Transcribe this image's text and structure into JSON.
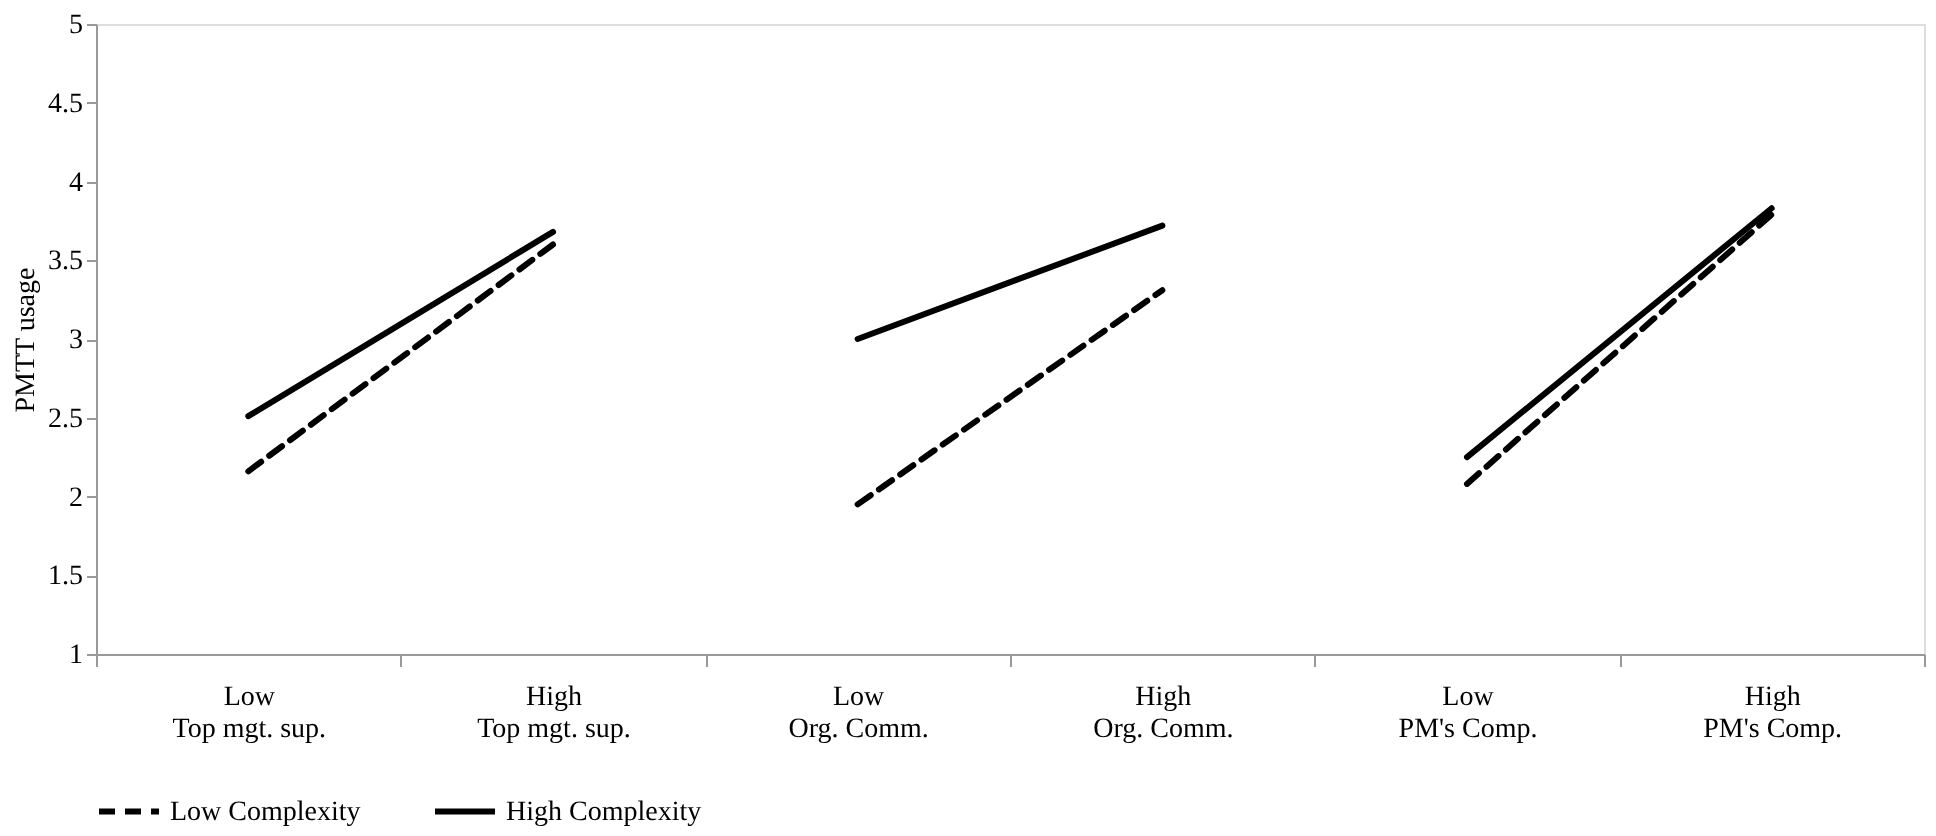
{
  "chart_data": {
    "type": "line",
    "ylabel": "PMTT usage",
    "categories": [
      "Low\nTop mgt. sup.",
      "High\nTop mgt. sup.",
      "Low\nOrg. Comm.",
      "High\nOrg. Comm.",
      "Low\nPM's Comp.",
      "High\nPM's Comp."
    ],
    "series": [
      {
        "name": "Low Complexity",
        "color": "#000000",
        "line_style": "dashed",
        "values": [
          2.16,
          3.6,
          1.95,
          3.31,
          2.08,
          3.79
        ]
      },
      {
        "name": "High Complexity",
        "color": "#000000",
        "line_style": "solid",
        "values": [
          2.51,
          3.68,
          3.0,
          3.72,
          2.25,
          3.83
        ]
      }
    ],
    "ylim": [
      1,
      5
    ],
    "yticks": [
      1,
      1.5,
      2,
      2.5,
      3,
      3.5,
      4,
      4.5,
      5
    ],
    "grid": false,
    "legend": "bottom",
    "marker": "none"
  }
}
